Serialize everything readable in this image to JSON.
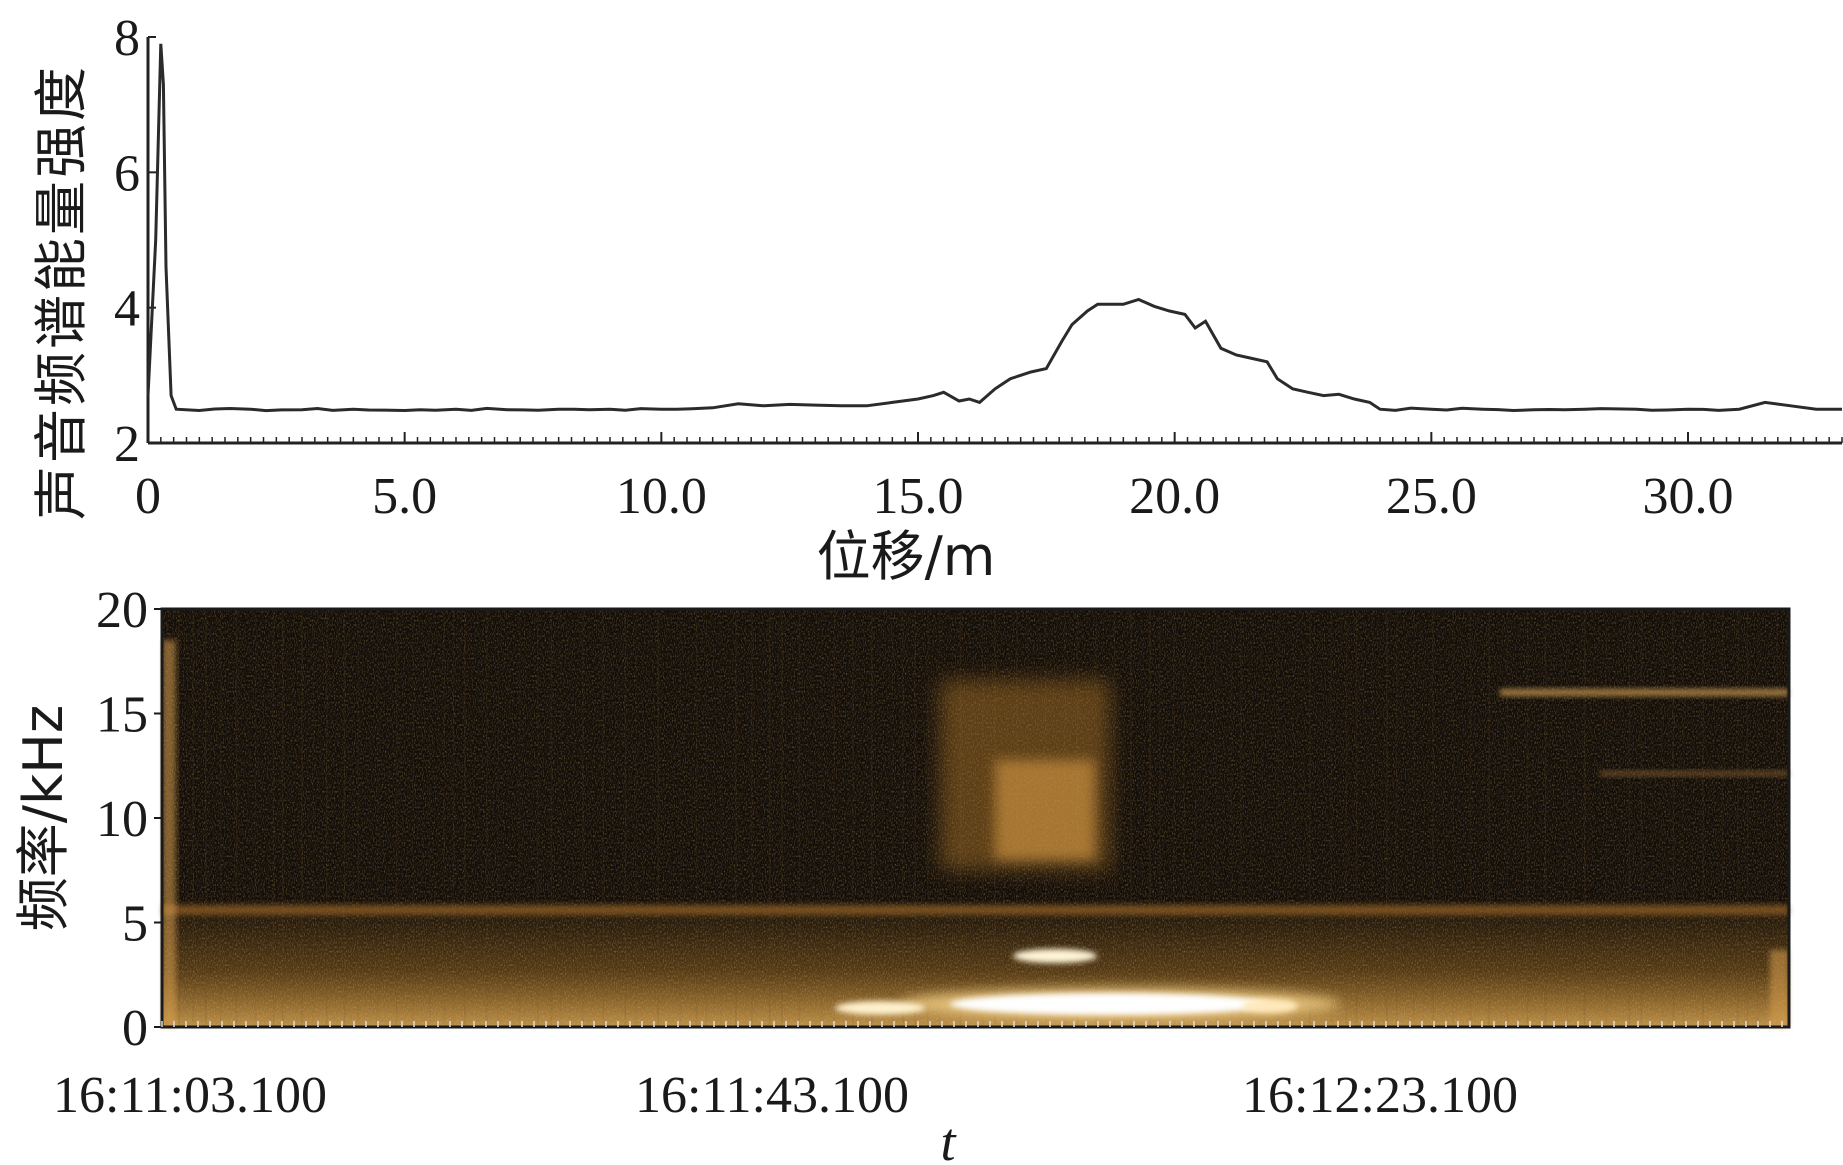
{
  "chart_data": [
    {
      "type": "line",
      "title": "",
      "xlabel": "位移/m",
      "ylabel": "声音频谱能量强度",
      "xlim": [
        0,
        33
      ],
      "ylim": [
        2,
        8
      ],
      "x_ticks": [
        {
          "value": 0,
          "label": "0"
        },
        {
          "value": 5,
          "label": "5.0"
        },
        {
          "value": 10,
          "label": "10.0"
        },
        {
          "value": 15,
          "label": "15.0"
        },
        {
          "value": 20,
          "label": "20.0"
        },
        {
          "value": 25,
          "label": "25.0"
        },
        {
          "value": 30,
          "label": "30.0"
        }
      ],
      "y_ticks": [
        {
          "value": 2,
          "label": "2"
        },
        {
          "value": 4,
          "label": "4"
        },
        {
          "value": 6,
          "label": "6"
        },
        {
          "value": 8,
          "label": "8"
        }
      ],
      "grid": false,
      "series": [
        {
          "x": [
            0,
            0.15,
            0.25,
            0.3,
            0.35,
            0.45,
            0.55,
            1,
            2,
            3,
            4,
            5,
            6,
            7,
            8,
            9,
            10,
            11,
            11.5,
            12,
            12.5,
            13,
            13.5,
            14,
            14.5,
            15,
            15.3,
            15.5,
            15.8,
            16,
            16.2,
            16.5,
            16.8,
            17,
            17.2,
            17.5,
            17.8,
            18,
            18.3,
            18.5,
            18.8,
            19,
            19.3,
            19.6,
            19.9,
            20.2,
            20.4,
            20.6,
            20.9,
            21.2,
            21.5,
            21.8,
            22,
            22.3,
            22.6,
            22.9,
            23.2,
            23.5,
            23.8,
            24,
            25,
            26,
            27,
            28,
            29,
            30,
            31,
            31.5,
            32,
            32.5,
            33
          ],
          "y": [
            2.7,
            5.0,
            7.9,
            7.3,
            4.6,
            2.7,
            2.5,
            2.48,
            2.5,
            2.49,
            2.5,
            2.48,
            2.5,
            2.49,
            2.5,
            2.5,
            2.5,
            2.52,
            2.58,
            2.55,
            2.57,
            2.56,
            2.55,
            2.55,
            2.6,
            2.65,
            2.7,
            2.75,
            2.62,
            2.65,
            2.6,
            2.8,
            2.95,
            3.0,
            3.05,
            3.1,
            3.5,
            3.75,
            3.95,
            4.05,
            4.05,
            4.05,
            4.12,
            4.02,
            3.95,
            3.9,
            3.7,
            3.8,
            3.4,
            3.3,
            3.25,
            3.2,
            2.95,
            2.8,
            2.75,
            2.7,
            2.72,
            2.65,
            2.6,
            2.5,
            2.5,
            2.5,
            2.49,
            2.5,
            2.5,
            2.5,
            2.5,
            2.6,
            2.55,
            2.5,
            2.5
          ]
        }
      ]
    },
    {
      "type": "heatmap",
      "title": "",
      "xlabel": "t",
      "ylabel": "频率/kHz",
      "x_tick_labels": [
        "16:11:03.100",
        "16:11:43.100",
        "16:12:23.100"
      ],
      "ylim": [
        0,
        20
      ],
      "y_ticks": [
        {
          "value": 0,
          "label": "0"
        },
        {
          "value": 5,
          "label": "5"
        },
        {
          "value": 10,
          "label": "10"
        },
        {
          "value": 15,
          "label": "15"
        },
        {
          "value": 20,
          "label": "20"
        }
      ],
      "colormap": [
        "#0e0a07",
        "#3a2410",
        "#8a5a1c",
        "#d89a3a",
        "#ffe7b0",
        "#ffffff"
      ],
      "grid": false
    }
  ]
}
